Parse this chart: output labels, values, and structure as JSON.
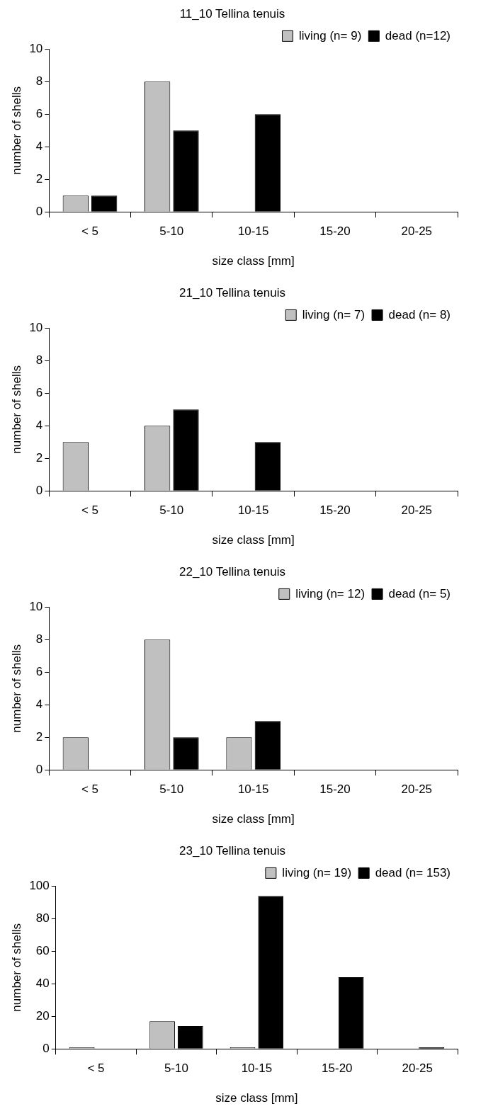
{
  "chart_data": [
    {
      "type": "bar",
      "title": "11_10 Tellina tenuis",
      "xlabel": "size class [mm]",
      "ylabel": "number of shells",
      "categories": [
        "< 5",
        "5-10",
        "10-15",
        "15-20",
        "20-25"
      ],
      "series": [
        {
          "name": "living (n= 9)",
          "color": "#c0c0c0",
          "values": [
            1,
            8,
            0,
            0,
            0
          ]
        },
        {
          "name": "dead (n=12)",
          "color": "#000000",
          "values": [
            1,
            5,
            6,
            0,
            0
          ]
        }
      ],
      "ylim": [
        0,
        10
      ],
      "yticks": [
        0,
        2,
        4,
        6,
        8,
        10
      ],
      "grid": false,
      "legend": "top right"
    },
    {
      "type": "bar",
      "title": "21_10 Tellina tenuis",
      "xlabel": "size class [mm]",
      "ylabel": "number of shells",
      "categories": [
        "< 5",
        "5-10",
        "10-15",
        "15-20",
        "20-25"
      ],
      "series": [
        {
          "name": "living (n= 7)",
          "color": "#c0c0c0",
          "values": [
            3,
            4,
            0,
            0,
            0
          ]
        },
        {
          "name": "dead (n= 8)",
          "color": "#000000",
          "values": [
            0,
            5,
            3,
            0,
            0
          ]
        }
      ],
      "ylim": [
        0,
        10
      ],
      "yticks": [
        0,
        2,
        4,
        6,
        8,
        10
      ],
      "grid": false,
      "legend": "top right"
    },
    {
      "type": "bar",
      "title": "22_10 Tellina tenuis",
      "xlabel": "size class [mm]",
      "ylabel": "number of shells",
      "categories": [
        "< 5",
        "5-10",
        "10-15",
        "15-20",
        "20-25"
      ],
      "series": [
        {
          "name": "living (n= 12)",
          "color": "#c0c0c0",
          "values": [
            2,
            8,
            2,
            0,
            0
          ]
        },
        {
          "name": "dead (n= 5)",
          "color": "#000000",
          "values": [
            0,
            2,
            3,
            0,
            0
          ]
        }
      ],
      "ylim": [
        0,
        10
      ],
      "yticks": [
        0,
        2,
        4,
        6,
        8,
        10
      ],
      "grid": false,
      "legend": "top right"
    },
    {
      "type": "bar",
      "title": "23_10 Tellina tenuis",
      "xlabel": "size class [mm]",
      "ylabel": "number of shells",
      "categories": [
        "< 5",
        "5-10",
        "10-15",
        "15-20",
        "20-25"
      ],
      "series": [
        {
          "name": "living (n= 19)",
          "color": "#c0c0c0",
          "values": [
            1,
            17,
            1,
            0,
            0
          ]
        },
        {
          "name": "dead (n= 153)",
          "color": "#000000",
          "values": [
            0,
            14,
            94,
            44,
            1
          ]
        }
      ],
      "ylim": [
        0,
        100
      ],
      "yticks": [
        0,
        20,
        40,
        60,
        80,
        100
      ],
      "grid": false,
      "legend": "top right"
    }
  ]
}
